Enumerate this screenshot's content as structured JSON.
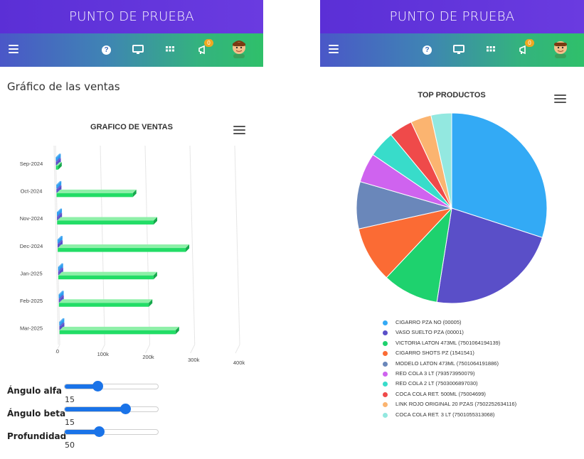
{
  "header": {
    "title": "PUNTO DE PRUEBA",
    "help_glyph": "?",
    "notification_count": "0",
    "icons": [
      "menu-icon",
      "help-icon",
      "monitor-icon",
      "grid-icon",
      "megaphone-icon",
      "avatar-icon"
    ]
  },
  "left": {
    "section_title": "Gráfico de las ventas",
    "sliders": [
      {
        "label": "Ángulo alfa",
        "value": "15",
        "fraction": 0.35
      },
      {
        "label": "Ángulo beta",
        "value": "15",
        "fraction": 0.65
      },
      {
        "label": "Profundidad",
        "value": "50",
        "fraction": 0.37
      }
    ]
  },
  "colors": {
    "bar_front": "#22dd66",
    "bar_top": "#8ef0a8",
    "bar_side": "#16a84c",
    "menu": "#555555"
  },
  "chart_data": [
    {
      "type": "bar",
      "orientation": "horizontal",
      "title": "GRAFICO DE VENTAS",
      "categories": [
        "Sep-2024",
        "Oct-2024",
        "Nov-2024",
        "Dec-2024",
        "Jan-2025",
        "Feb-2025",
        "Mar-2025"
      ],
      "series": [
        {
          "color": "#2f9df0",
          "values": [
            2000,
            1500,
            1500,
            1500,
            1500,
            1500,
            1500
          ]
        },
        {
          "color": "#5b4fc9",
          "values": [
            2000,
            1500,
            1500,
            1500,
            1500,
            1500,
            1500
          ]
        },
        {
          "color": "#22dd66",
          "values": [
            5000,
            170000,
            215000,
            285000,
            212000,
            200000,
            258000
          ]
        }
      ],
      "xlim": [
        0,
        400000
      ],
      "xticks": [
        "0",
        "100k",
        "200k",
        "300k",
        "400k"
      ],
      "grid": true,
      "view": "3d"
    },
    {
      "type": "pie",
      "title": "TOP PRODUCTOS",
      "legend_position": "bottom",
      "slices": [
        {
          "label": "CIGARRO PZA NO (00005)",
          "value": 30.0,
          "color": "#33aaf5"
        },
        {
          "label": "VASO SUELTO PZA (00001)",
          "value": 22.5,
          "color": "#5a4fc8"
        },
        {
          "label": "VICTORIA LATON 473ML (7501064194139)",
          "value": 9.5,
          "color": "#1ed26e"
        },
        {
          "label": "CIGARRO SHOTS PZ (1541541)",
          "value": 9.5,
          "color": "#fb6b34"
        },
        {
          "label": "MODELO LATON 473ML (7501064191886)",
          "value": 8.0,
          "color": "#6a87ba"
        },
        {
          "label": "RED COLA 3 LT (793573950079)",
          "value": 5.0,
          "color": "#cf63ef"
        },
        {
          "label": "RED COLA 2 LT (7503006897030)",
          "value": 4.5,
          "color": "#38dcca"
        },
        {
          "label": "COCA COLA RET. 500ML (75004699)",
          "value": 4.0,
          "color": "#ef4a4a"
        },
        {
          "label": "LINK ROJO ORIGINAL 20 PZAS (7502252634116)",
          "value": 3.5,
          "color": "#fbb470"
        },
        {
          "label": "COCA COLA RET. 3 LT (7501055313068)",
          "value": 3.5,
          "color": "#93e8e0"
        }
      ]
    }
  ]
}
